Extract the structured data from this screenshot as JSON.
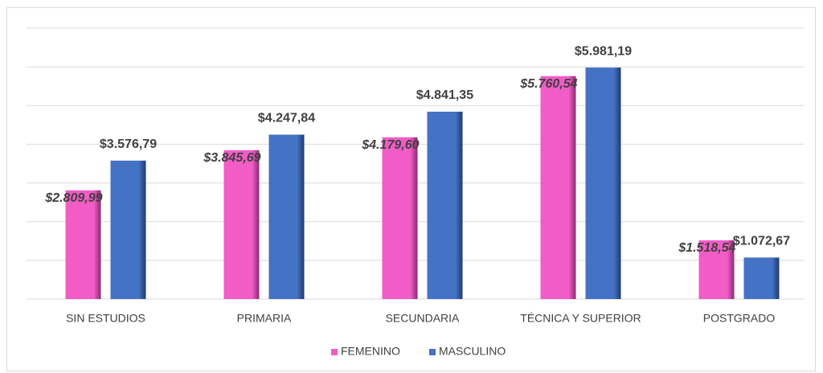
{
  "chart_data": {
    "type": "bar",
    "categories": [
      "SIN ESTUDIOS",
      "PRIMARIA",
      "SECUNDARIA",
      "TÉCNICA Y SUPERIOR",
      "POSTGRADO"
    ],
    "series": [
      {
        "name": "FEMENINO",
        "color": "#f25cc6",
        "values": [
          2809.99,
          3845.69,
          4179.6,
          5760.54,
          1518.54
        ],
        "value_labels": [
          "$2.809,99",
          "$3.845,69",
          "$4.179,60",
          "$5.760,54",
          "$1.518,54"
        ]
      },
      {
        "name": "MASCULINO",
        "color": "#4472c4",
        "values": [
          3576.79,
          4247.84,
          4841.35,
          5981.19,
          1072.67
        ],
        "value_labels": [
          "$3.576,79",
          "$4.247,84",
          "$4.841,35",
          "$5.981,19",
          "$1.072,67"
        ]
      }
    ],
    "ylim": [
      0,
      7000
    ],
    "yticks": [
      0,
      1000,
      2000,
      3000,
      4000,
      5000,
      6000,
      7000
    ],
    "grid": true,
    "legend": "bottom"
  }
}
